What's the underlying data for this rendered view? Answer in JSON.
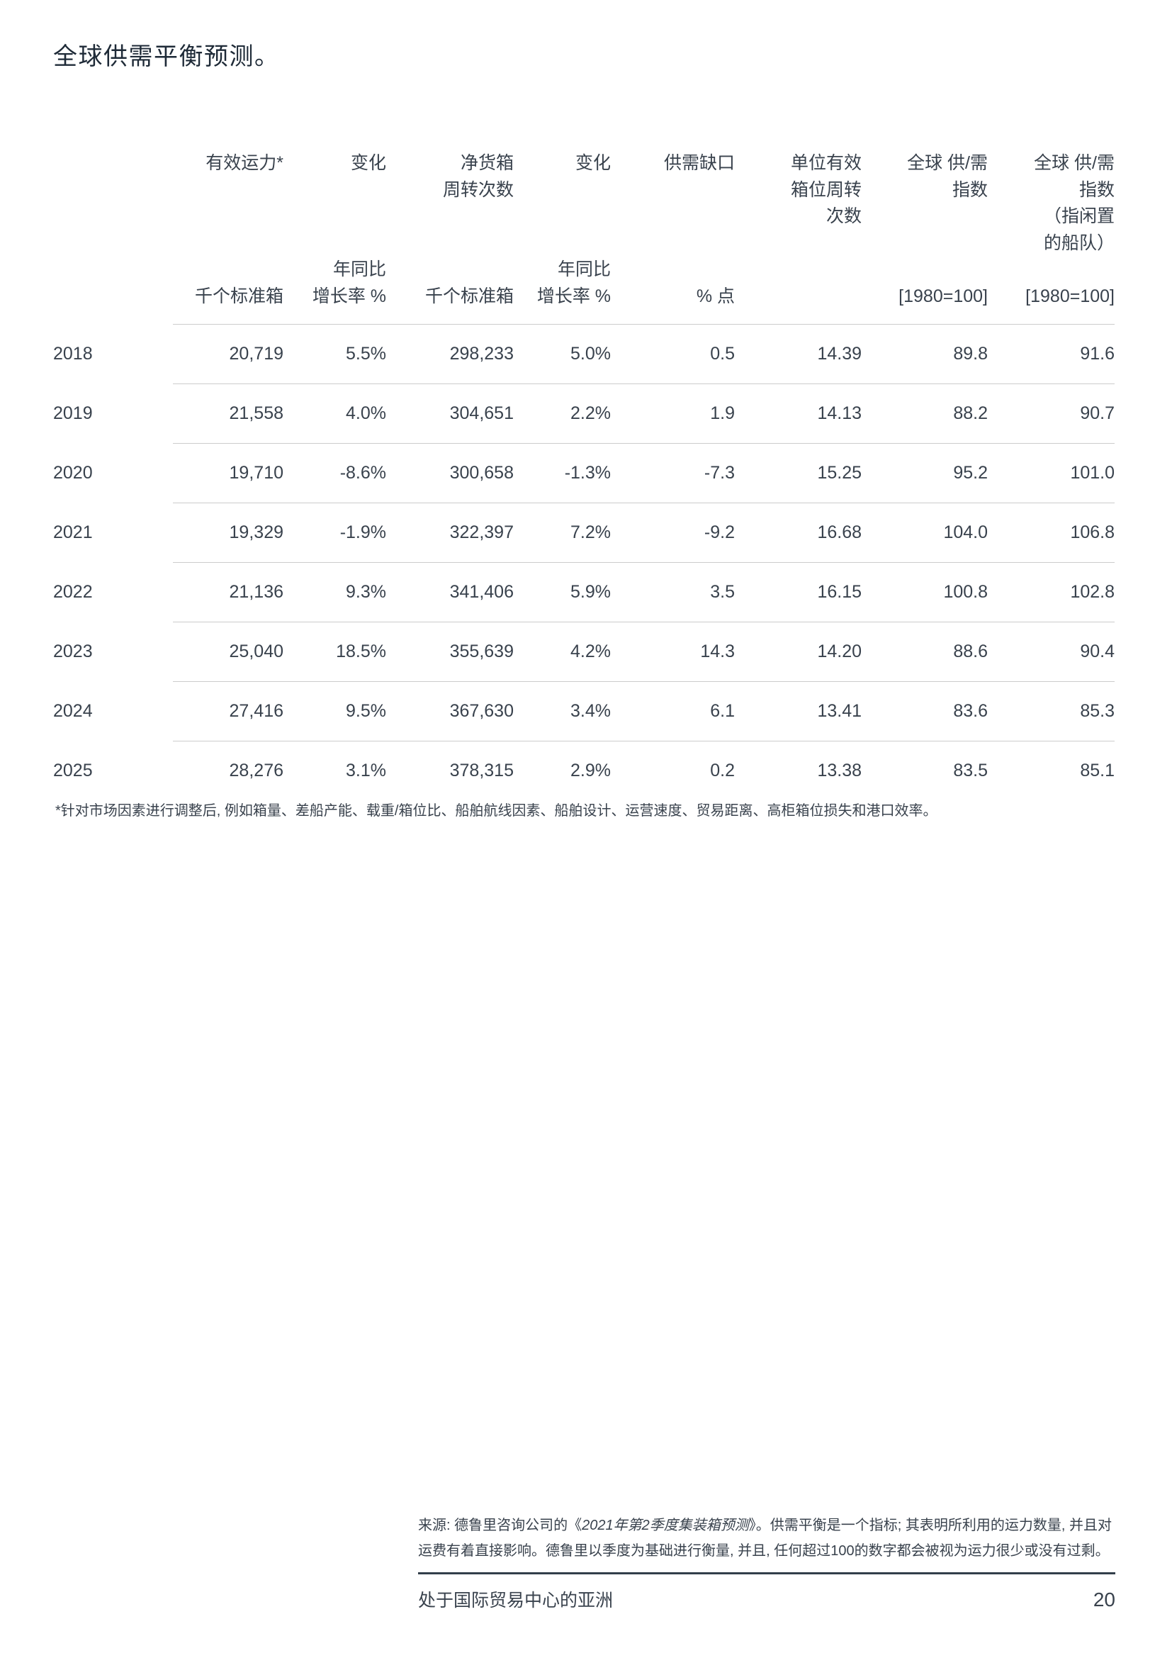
{
  "title": "全球供需平衡预测。",
  "table": {
    "columns": [
      {
        "label": "",
        "unit": ""
      },
      {
        "label": "有效运力*",
        "unit": "千个标准箱"
      },
      {
        "label": "变化",
        "unit": "年同比\n增长率 %"
      },
      {
        "label": "净货箱\n周转次数",
        "unit": "千个标准箱"
      },
      {
        "label": "变化",
        "unit": "年同比\n增长率 %"
      },
      {
        "label": "供需缺口",
        "unit": "% 点"
      },
      {
        "label": "单位有效\n箱位周转\n次数",
        "unit": ""
      },
      {
        "label": "全球 供/需\n指数",
        "unit": "[1980=100]"
      },
      {
        "label": "全球 供/需\n指数\n（指闲置\n的船队）",
        "unit": "[1980=100]"
      }
    ],
    "rows": [
      {
        "year": "2018",
        "cells": [
          "20,719",
          "5.5%",
          "298,233",
          "5.0%",
          "0.5",
          "14.39",
          "89.8",
          "91.6"
        ]
      },
      {
        "year": "2019",
        "cells": [
          "21,558",
          "4.0%",
          "304,651",
          "2.2%",
          "1.9",
          "14.13",
          "88.2",
          "90.7"
        ]
      },
      {
        "year": "2020",
        "cells": [
          "19,710",
          "-8.6%",
          "300,658",
          "-1.3%",
          "-7.3",
          "15.25",
          "95.2",
          "101.0"
        ]
      },
      {
        "year": "2021",
        "cells": [
          "19,329",
          "-1.9%",
          "322,397",
          "7.2%",
          "-9.2",
          "16.68",
          "104.0",
          "106.8"
        ]
      },
      {
        "year": "2022",
        "cells": [
          "21,136",
          "9.3%",
          "341,406",
          "5.9%",
          "3.5",
          "16.15",
          "100.8",
          "102.8"
        ]
      },
      {
        "year": "2023",
        "cells": [
          "25,040",
          "18.5%",
          "355,639",
          "4.2%",
          "14.3",
          "14.20",
          "88.6",
          "90.4"
        ]
      },
      {
        "year": "2024",
        "cells": [
          "27,416",
          "9.5%",
          "367,630",
          "3.4%",
          "6.1",
          "13.41",
          "83.6",
          "85.3"
        ]
      },
      {
        "year": "2025",
        "cells": [
          "28,276",
          "3.1%",
          "378,315",
          "2.9%",
          "0.2",
          "13.38",
          "83.5",
          "85.1"
        ]
      }
    ]
  },
  "footnote": "*针对市场因素进行调整后, 例如箱量、差船产能、载重/箱位比、船舶航线因素、船舶设计、运营速度、贸易距离、高柜箱位损失和港口效率。",
  "source": {
    "prefix": "来源: 德鲁里咨询公司的《",
    "title_italic": "2021年第2季度集装箱预测",
    "suffix": "》。供需平衡是一个指标; 其表明所利用的运力数量, 并且对运费有着直接影响。德鲁里以季度为基础进行衡量, 并且, 任何超过100的数字都会被视为运力很少或没有过剩。"
  },
  "footer": {
    "title": "处于国际贸易中心的亚洲",
    "page_number": "20"
  },
  "colors": {
    "text": "#39424d",
    "title": "#1e2a37",
    "divider": "#cccccc",
    "footer_rule": "#323e4a"
  }
}
